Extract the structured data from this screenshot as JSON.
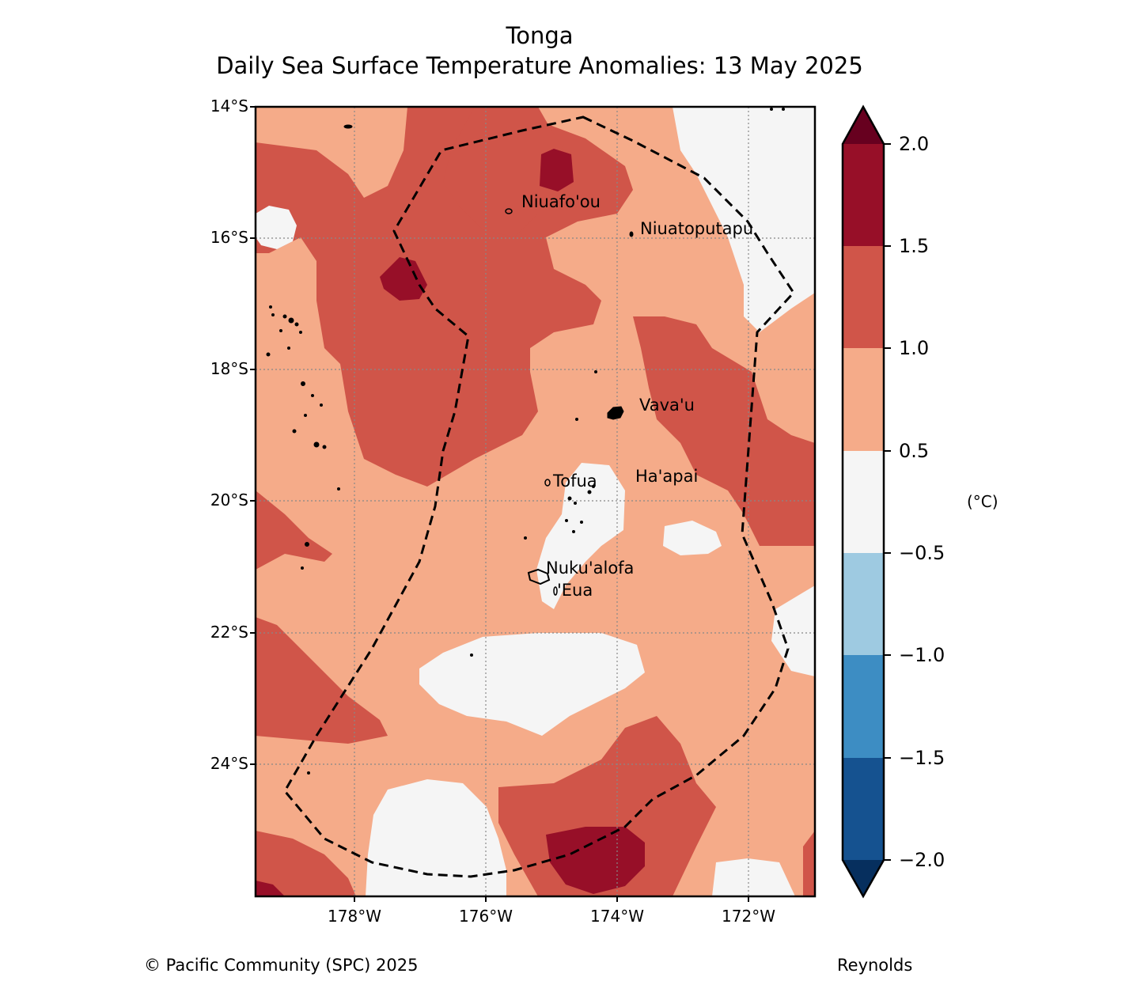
{
  "title": {
    "line1": "Tonga",
    "line2": "Daily Sea Surface Temperature Anomalies: 13 May 2025"
  },
  "map": {
    "lat_labels": [
      "14°S",
      "16°S",
      "18°S",
      "20°S",
      "22°S",
      "24°S"
    ],
    "lon_labels": [
      "178°W",
      "176°W",
      "174°W",
      "172°W"
    ],
    "lat_range": [
      -26,
      -14
    ],
    "lon_range": [
      -179.5,
      -171
    ],
    "gridlines": true,
    "places": [
      {
        "name": "Niuafo'ou"
      },
      {
        "name": "Niuatoputapu"
      },
      {
        "name": "Vava'u"
      },
      {
        "name": "Tofua"
      },
      {
        "name": "Ha'apai"
      },
      {
        "name": "Nuku'alofa"
      },
      {
        "name": "'Eua"
      }
    ],
    "eez_boundary": "dashed"
  },
  "colorbar": {
    "ticks": [
      "2.0",
      "1.5",
      "1.0",
      "0.5",
      "−0.5",
      "−1.0",
      "−1.5",
      "−2.0"
    ],
    "unit": "(°C)",
    "colors": {
      "above_2.0": "#67001f",
      "1.5_to_2.0": "#970f28",
      "1.0_to_1.5": "#d05549",
      "0.5_to_1.0": "#f5ab89",
      "-0.5_to_0.5": "#f5f5f5",
      "-1.0_to_-0.5": "#9ecae1",
      "-1.5_to_-1.0": "#3d8dc3",
      "-2.0_to_-1.5": "#155290",
      "below_-2.0": "#062f5e"
    }
  },
  "footer": {
    "credit": "© Pacific Community (SPC) 2025",
    "source": "Reynolds"
  }
}
